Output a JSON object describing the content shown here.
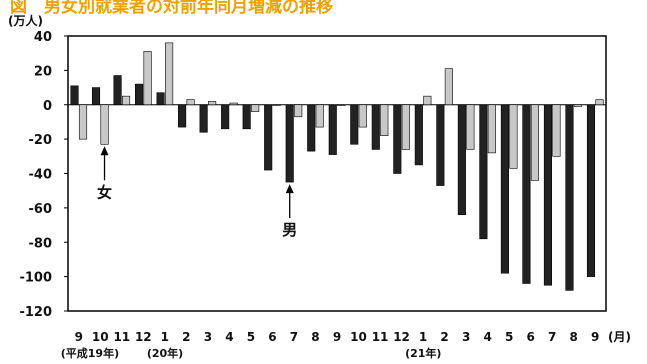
{
  "chart_data": {
    "type": "bar",
    "title": "図　男女別就業者の対前年同月増減の推移",
    "y_unit": "(万人)",
    "x_unit": "(月)",
    "ylim": [
      -120,
      40
    ],
    "yticks": [
      40,
      20,
      0,
      -20,
      -40,
      -60,
      -80,
      -100,
      -120
    ],
    "categories": [
      "9",
      "10",
      "11",
      "12",
      "1",
      "2",
      "3",
      "4",
      "5",
      "6",
      "7",
      "8",
      "9",
      "10",
      "11",
      "12",
      "1",
      "2",
      "3",
      "4",
      "5",
      "6",
      "7",
      "8",
      "9"
    ],
    "year_labels": [
      {
        "at": 0,
        "text": "(平成19年)"
      },
      {
        "at": 4,
        "text": "(20年)"
      },
      {
        "at": 16,
        "text": "(21年)"
      }
    ],
    "series": [
      {
        "name": "男",
        "color": "#222222",
        "values": [
          11,
          10,
          17,
          12,
          7,
          -13,
          -16,
          -14,
          -14,
          -38,
          -45,
          -27,
          -29,
          -23,
          -26,
          -40,
          -35,
          -47,
          -64,
          -78,
          -98,
          -104,
          -105,
          -108,
          -100
        ]
      },
      {
        "name": "女",
        "color": "#c8c8c8",
        "values": [
          -20,
          -23,
          5,
          31,
          36,
          3,
          2,
          1,
          -4,
          0,
          -7,
          -13,
          0,
          -13,
          -18,
          -26,
          5,
          21,
          -26,
          -28,
          -37,
          -44,
          -30,
          -1,
          3
        ]
      }
    ],
    "annotations": [
      {
        "text": "女",
        "category_index": 1,
        "series": "女"
      },
      {
        "text": "男",
        "category_index": 10,
        "series": "男"
      }
    ],
    "grid": false,
    "legend": "none"
  }
}
